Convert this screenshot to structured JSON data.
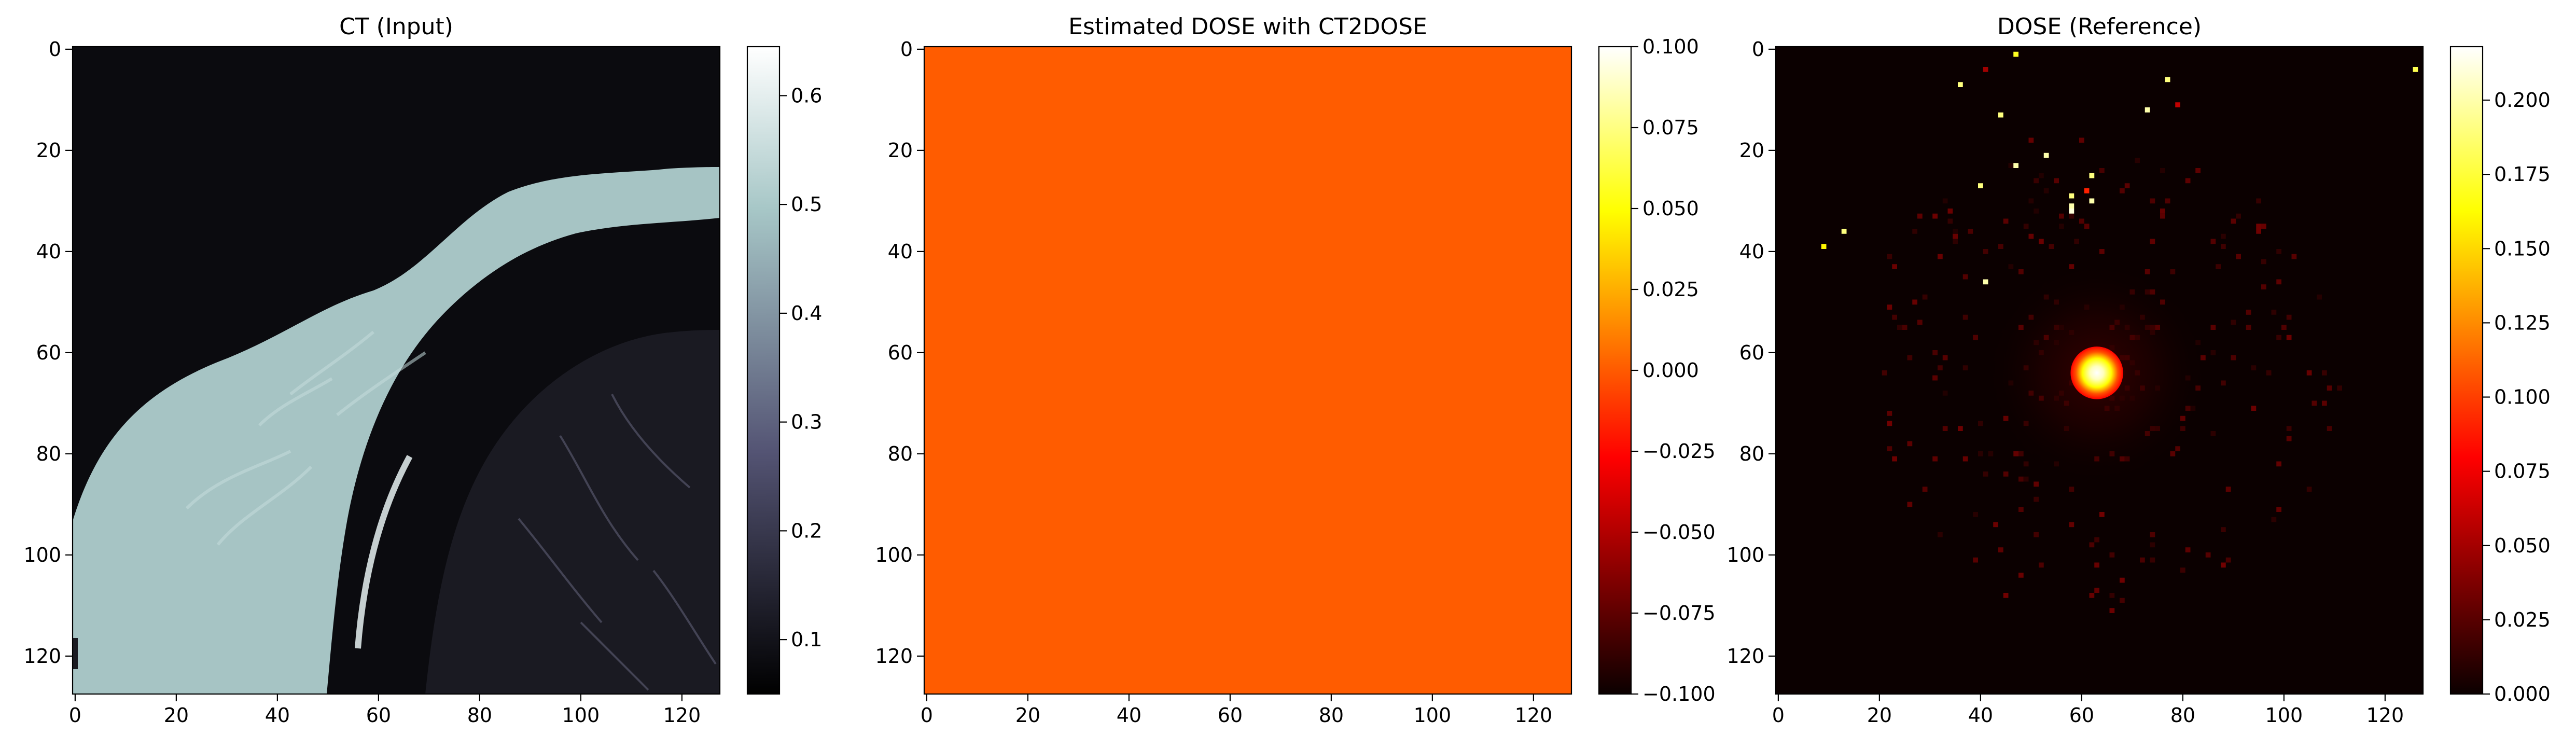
{
  "chart_data": [
    {
      "type": "heatmap",
      "title": "CT (Input)",
      "colormap": "bone",
      "xlim": [
        0,
        127
      ],
      "ylim": [
        127,
        0
      ],
      "xticks": [
        0,
        20,
        40,
        60,
        80,
        100,
        120
      ],
      "yticks": [
        0,
        20,
        40,
        60,
        80,
        100,
        120
      ],
      "colorbar": {
        "min": 0.05,
        "max": 0.645,
        "ticks": [
          "0.1",
          "0.2",
          "0.3",
          "0.4",
          "0.5",
          "0.6"
        ],
        "tick_values": [
          0.1,
          0.2,
          0.3,
          0.4,
          0.5,
          0.6
        ]
      },
      "description_values": {
        "background_air": 0.05,
        "soft_tissue": 0.56,
        "bone_rim": 0.64,
        "lung": 0.08
      }
    },
    {
      "type": "heatmap",
      "title": "Estimated DOSE with CT2DOSE",
      "colormap": "hot",
      "xlim": [
        0,
        127
      ],
      "ylim": [
        127,
        0
      ],
      "xticks": [
        0,
        20,
        40,
        60,
        80,
        100,
        120
      ],
      "yticks": [
        0,
        20,
        40,
        60,
        80,
        100,
        120
      ],
      "uniform_value": 0.0,
      "uniform_color": "#ff5c00",
      "colorbar": {
        "min": -0.1,
        "max": 0.1,
        "ticks": [
          "0.100",
          "0.075",
          "0.050",
          "0.025",
          "0.000",
          "−0.025",
          "−0.050",
          "−0.075",
          "−0.100"
        ],
        "tick_values": [
          0.1,
          0.075,
          0.05,
          0.025,
          0.0,
          -0.025,
          -0.05,
          -0.075,
          -0.1
        ]
      }
    },
    {
      "type": "heatmap",
      "title": "DOSE (Reference)",
      "colormap": "hot",
      "xlim": [
        0,
        127
      ],
      "ylim": [
        127,
        0
      ],
      "xticks": [
        0,
        20,
        40,
        60,
        80,
        100,
        120
      ],
      "yticks": [
        0,
        20,
        40,
        60,
        80,
        100,
        120
      ],
      "hotspot": {
        "x": 63,
        "y": 64,
        "peak": 0.215
      },
      "scattered_points": [
        {
          "x": 36,
          "y": 7,
          "v": 0.19
        },
        {
          "x": 47,
          "y": 1,
          "v": 0.17
        },
        {
          "x": 44,
          "y": 13,
          "v": 0.19
        },
        {
          "x": 47,
          "y": 23,
          "v": 0.2
        },
        {
          "x": 53,
          "y": 21,
          "v": 0.2
        },
        {
          "x": 40,
          "y": 27,
          "v": 0.19
        },
        {
          "x": 58,
          "y": 29,
          "v": 0.19
        },
        {
          "x": 58,
          "y": 31,
          "v": 0.2
        },
        {
          "x": 58,
          "y": 32,
          "v": 0.21
        },
        {
          "x": 62,
          "y": 25,
          "v": 0.19
        },
        {
          "x": 62,
          "y": 30,
          "v": 0.2
        },
        {
          "x": 61,
          "y": 28,
          "v": 0.09
        },
        {
          "x": 73,
          "y": 12,
          "v": 0.2
        },
        {
          "x": 77,
          "y": 6,
          "v": 0.19
        },
        {
          "x": 79,
          "y": 11,
          "v": 0.06
        },
        {
          "x": 126,
          "y": 4,
          "v": 0.18
        },
        {
          "x": 9,
          "y": 39,
          "v": 0.16
        },
        {
          "x": 13,
          "y": 36,
          "v": 0.19
        },
        {
          "x": 41,
          "y": 46,
          "v": 0.2
        },
        {
          "x": 41,
          "y": 4,
          "v": 0.05
        }
      ],
      "colorbar": {
        "min": 0.0,
        "max": 0.218,
        "ticks": [
          "0.200",
          "0.175",
          "0.150",
          "0.125",
          "0.100",
          "0.075",
          "0.050",
          "0.025",
          "0.000"
        ],
        "tick_values": [
          0.2,
          0.175,
          0.15,
          0.125,
          0.1,
          0.075,
          0.05,
          0.025,
          0.0
        ]
      }
    }
  ]
}
